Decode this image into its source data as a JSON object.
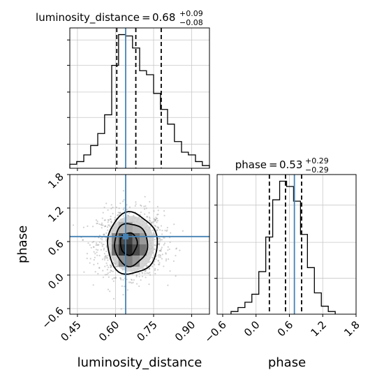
{
  "chart_data": [
    {
      "type": "histogram",
      "panel": "luminosity_distance marginal",
      "title": {
        "name": "luminosity_distance",
        "value": "0.68",
        "plus": "+0.09",
        "minus": "−0.08"
      },
      "xlim": [
        0.42,
        0.97
      ],
      "bin_edges": [
        0.42,
        0.447,
        0.475,
        0.502,
        0.53,
        0.557,
        0.585,
        0.612,
        0.64,
        0.667,
        0.695,
        0.722,
        0.75,
        0.777,
        0.805,
        0.832,
        0.86,
        0.887,
        0.915,
        0.942,
        0.97
      ],
      "counts": [
        0.03,
        0.05,
        0.1,
        0.17,
        0.26,
        0.4,
        0.77,
        1.0,
        0.99,
        0.9,
        0.73,
        0.7,
        0.56,
        0.44,
        0.33,
        0.2,
        0.12,
        0.1,
        0.05,
        0.02
      ],
      "quantiles": [
        0.605,
        0.68,
        0.78
      ],
      "truth": 0.64,
      "grid": true
    },
    {
      "type": "histogram",
      "panel": "phase marginal",
      "title": {
        "name": "phase",
        "value": "0.53",
        "plus": "+0.29",
        "minus": "−0.29"
      },
      "xlim": [
        -0.7,
        1.8
      ],
      "xticks": [
        -0.6,
        0.0,
        0.6,
        1.2,
        1.8
      ],
      "xtick_labels": [
        "−0.6",
        "0.0",
        "0.6",
        "1.2",
        "1.8"
      ],
      "bin_edges": [
        -0.45,
        -0.325,
        -0.2,
        -0.075,
        0.05,
        0.175,
        0.3,
        0.425,
        0.55,
        0.675,
        0.8,
        0.925,
        1.05,
        1.175,
        1.3,
        1.425
      ],
      "counts": [
        0.02,
        0.05,
        0.09,
        0.15,
        0.32,
        0.58,
        0.86,
        1.0,
        0.96,
        0.85,
        0.6,
        0.35,
        0.16,
        0.06,
        0.02
      ],
      "quantiles": [
        0.24,
        0.53,
        0.82
      ],
      "truth": 0.69,
      "xlabel": "phase",
      "grid": true
    },
    {
      "type": "heatmap",
      "panel": "luminosity_distance vs phase 2D histogram",
      "xlim": [
        0.42,
        0.97
      ],
      "ylim": [
        -0.7,
        1.8
      ],
      "xticks": [
        0.45,
        0.6,
        0.75,
        0.9
      ],
      "xtick_labels": [
        "0.45",
        "0.60",
        "0.75",
        "0.90"
      ],
      "yticks": [
        -0.6,
        0.0,
        0.6,
        1.2,
        1.8
      ],
      "ytick_labels": [
        "−0.6",
        "0.0",
        "0.6",
        "1.2",
        "1.8"
      ],
      "xlabel": "luminosity_distance",
      "ylabel": "phase",
      "center": [
        0.66,
        0.56
      ],
      "spread": [
        0.065,
        0.29
      ],
      "cells": [
        {
          "x": [
            0.585,
            0.612
          ],
          "y": [
            0.35,
            0.55
          ],
          "level": 0.55
        },
        {
          "x": [
            0.612,
            0.64
          ],
          "y": [
            0.35,
            0.55
          ],
          "level": 0.8
        },
        {
          "x": [
            0.64,
            0.667
          ],
          "y": [
            0.35,
            0.55
          ],
          "level": 0.85
        },
        {
          "x": [
            0.667,
            0.695
          ],
          "y": [
            0.35,
            0.55
          ],
          "level": 0.7
        },
        {
          "x": [
            0.695,
            0.722
          ],
          "y": [
            0.35,
            0.55
          ],
          "level": 0.55
        },
        {
          "x": [
            0.612,
            0.64
          ],
          "y": [
            0.55,
            0.75
          ],
          "level": 0.7
        },
        {
          "x": [
            0.64,
            0.667
          ],
          "y": [
            0.55,
            0.75
          ],
          "level": 0.75
        },
        {
          "x": [
            0.667,
            0.695
          ],
          "y": [
            0.55,
            0.75
          ],
          "level": 0.55
        },
        {
          "x": [
            0.585,
            0.612
          ],
          "y": [
            0.55,
            0.75
          ],
          "level": 0.45
        },
        {
          "x": [
            0.695,
            0.722
          ],
          "y": [
            0.55,
            0.75
          ],
          "level": 0.4
        },
        {
          "x": [
            0.612,
            0.64
          ],
          "y": [
            0.15,
            0.35
          ],
          "level": 0.45
        },
        {
          "x": [
            0.64,
            0.667
          ],
          "y": [
            0.15,
            0.35
          ],
          "level": 0.5
        },
        {
          "x": [
            0.667,
            0.695
          ],
          "y": [
            0.15,
            0.35
          ],
          "level": 0.4
        },
        {
          "x": [
            0.64,
            0.667
          ],
          "y": [
            0.75,
            0.95
          ],
          "level": 0.35
        },
        {
          "x": [
            0.612,
            0.64
          ],
          "y": [
            0.75,
            0.95
          ],
          "level": 0.3
        }
      ],
      "contours": [
        {
          "level": 0.5,
          "cx": 0.652,
          "cy": 0.56,
          "rx": 0.033,
          "ry": 0.2
        },
        {
          "level": 1.0,
          "cx": 0.66,
          "cy": 0.55,
          "rx": 0.065,
          "ry": 0.38
        },
        {
          "level": 1.5,
          "cx": 0.665,
          "cy": 0.56,
          "rx": 0.098,
          "ry": 0.55
        }
      ],
      "truth": [
        0.64,
        0.69
      ],
      "grid": true
    }
  ],
  "colors": {
    "truth": "#4682b4",
    "hist": "#000000",
    "grid": "#c8c8c8"
  }
}
